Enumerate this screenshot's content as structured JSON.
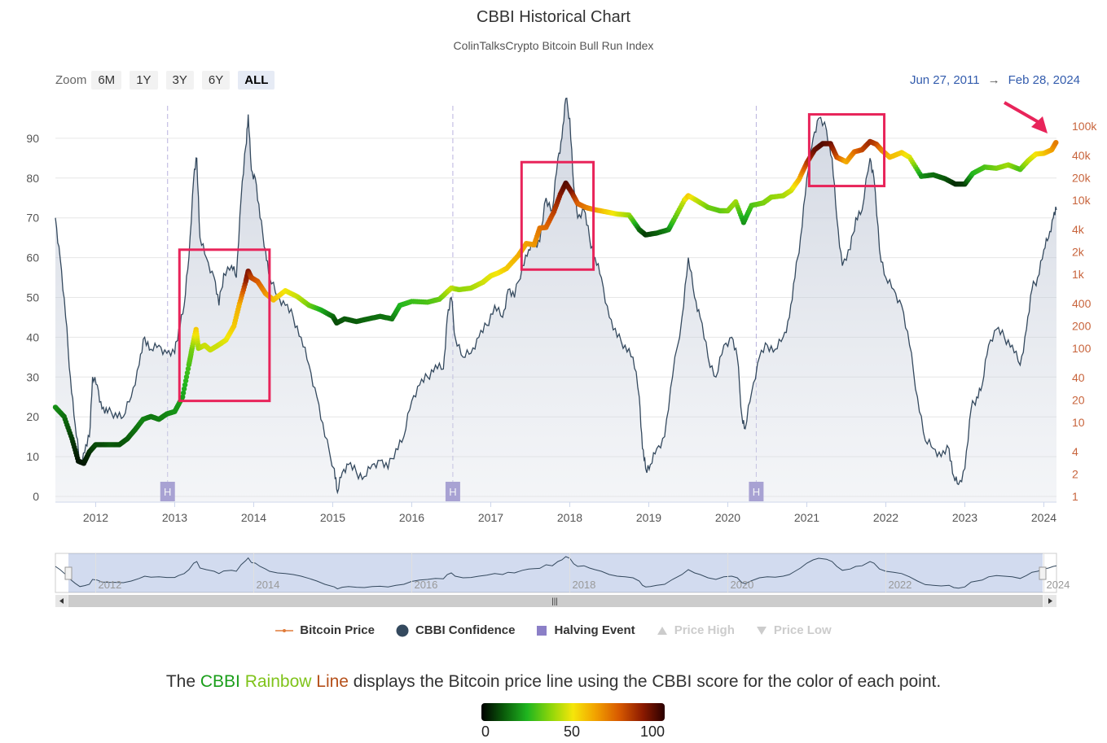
{
  "header": {
    "title": "CBBI Historical Chart",
    "subtitle": "ColinTalksCrypto Bitcoin Bull Run Index"
  },
  "zoom": {
    "label": "Zoom",
    "buttons": [
      "6M",
      "1Y",
      "3Y",
      "6Y",
      "ALL"
    ],
    "active": "ALL"
  },
  "range": {
    "from": "Jun 27, 2011",
    "arrow": "→",
    "to": "Feb 28, 2024"
  },
  "legend": [
    {
      "label": "Bitcoin Price",
      "color": "#e07b39",
      "enabled": true
    },
    {
      "label": "CBBI Confidence",
      "color": "#34495e",
      "enabled": true
    },
    {
      "label": "Halving Event",
      "color": "#8b7fc7",
      "enabled": true
    },
    {
      "label": "Price High",
      "color": "#cccccc",
      "enabled": false
    },
    {
      "label": "Price Low",
      "color": "#cccccc",
      "enabled": false
    }
  ],
  "caption": {
    "pre": "The ",
    "cbbi": "CBBI",
    "rainbow": "Rainbow",
    "line": "Line",
    "post": " displays the Bitcoin price line using the CBBI score for the color of each point."
  },
  "colorbar": {
    "min": "0",
    "mid": "50",
    "max": "100"
  },
  "chart_data": {
    "type": "line",
    "title": "CBBI Historical Chart",
    "x_range": [
      2011.49,
      2024.16
    ],
    "x_ticks": [
      "2012",
      "2013",
      "2014",
      "2015",
      "2016",
      "2017",
      "2018",
      "2019",
      "2020",
      "2021",
      "2022",
      "2023",
      "2024"
    ],
    "navigator_ticks": [
      "2012",
      "2014",
      "2016",
      "2018",
      "2020",
      "2022",
      "2024"
    ],
    "y_left": {
      "ticks": [
        "0",
        "10",
        "20",
        "30",
        "40",
        "50",
        "60",
        "70",
        "80",
        "90"
      ],
      "range": [
        0,
        100
      ]
    },
    "y_right": {
      "ticks": [
        "1",
        "2",
        "4",
        "10",
        "20",
        "40",
        "100",
        "200",
        "400",
        "1k",
        "2k",
        "4k",
        "10k",
        "20k",
        "40k",
        "100k"
      ],
      "scale": "log",
      "range": [
        0.8,
        160000
      ]
    },
    "cbbi_confidence": [
      [
        2011.49,
        70
      ],
      [
        2011.55,
        60
      ],
      [
        2011.62,
        45
      ],
      [
        2011.68,
        30
      ],
      [
        2011.74,
        18
      ],
      [
        2011.8,
        8
      ],
      [
        2011.86,
        11
      ],
      [
        2011.92,
        15
      ],
      [
        2011.96,
        30
      ],
      [
        2012.02,
        28
      ],
      [
        2012.08,
        22
      ],
      [
        2012.15,
        21
      ],
      [
        2012.25,
        21
      ],
      [
        2012.35,
        20
      ],
      [
        2012.45,
        25
      ],
      [
        2012.55,
        33
      ],
      [
        2012.62,
        40
      ],
      [
        2012.7,
        37
      ],
      [
        2012.8,
        38
      ],
      [
        2012.9,
        36
      ],
      [
        2013.0,
        36
      ],
      [
        2013.05,
        42
      ],
      [
        2013.12,
        48
      ],
      [
        2013.18,
        60
      ],
      [
        2013.24,
        80
      ],
      [
        2013.28,
        85
      ],
      [
        2013.32,
        65
      ],
      [
        2013.4,
        60
      ],
      [
        2013.5,
        55
      ],
      [
        2013.56,
        48
      ],
      [
        2013.62,
        56
      ],
      [
        2013.72,
        58
      ],
      [
        2013.78,
        55
      ],
      [
        2013.84,
        75
      ],
      [
        2013.9,
        88
      ],
      [
        2013.93,
        96
      ],
      [
        2013.97,
        82
      ],
      [
        2014.02,
        80
      ],
      [
        2014.08,
        70
      ],
      [
        2014.15,
        62
      ],
      [
        2014.2,
        55
      ],
      [
        2014.3,
        50
      ],
      [
        2014.4,
        48
      ],
      [
        2014.5,
        45
      ],
      [
        2014.6,
        40
      ],
      [
        2014.7,
        33
      ],
      [
        2014.8,
        25
      ],
      [
        2014.9,
        15
      ],
      [
        2015.02,
        7
      ],
      [
        2015.06,
        1
      ],
      [
        2015.12,
        6
      ],
      [
        2015.2,
        8
      ],
      [
        2015.3,
        6
      ],
      [
        2015.4,
        5
      ],
      [
        2015.5,
        8
      ],
      [
        2015.6,
        9
      ],
      [
        2015.7,
        7
      ],
      [
        2015.8,
        12
      ],
      [
        2015.9,
        15
      ],
      [
        2016.0,
        24
      ],
      [
        2016.1,
        28
      ],
      [
        2016.2,
        30
      ],
      [
        2016.3,
        33
      ],
      [
        2016.4,
        32
      ],
      [
        2016.45,
        45
      ],
      [
        2016.5,
        50
      ],
      [
        2016.55,
        40
      ],
      [
        2016.65,
        35
      ],
      [
        2016.75,
        36
      ],
      [
        2016.85,
        40
      ],
      [
        2016.95,
        43
      ],
      [
        2017.05,
        48
      ],
      [
        2017.15,
        45
      ],
      [
        2017.22,
        52
      ],
      [
        2017.3,
        50
      ],
      [
        2017.4,
        58
      ],
      [
        2017.48,
        62
      ],
      [
        2017.55,
        63
      ],
      [
        2017.62,
        64
      ],
      [
        2017.7,
        75
      ],
      [
        2017.78,
        72
      ],
      [
        2017.85,
        85
      ],
      [
        2017.9,
        90
      ],
      [
        2017.95,
        100
      ],
      [
        2018.0,
        95
      ],
      [
        2018.05,
        78
      ],
      [
        2018.1,
        70
      ],
      [
        2018.18,
        72
      ],
      [
        2018.25,
        65
      ],
      [
        2018.32,
        60
      ],
      [
        2018.4,
        55
      ],
      [
        2018.5,
        45
      ],
      [
        2018.6,
        40
      ],
      [
        2018.7,
        38
      ],
      [
        2018.8,
        35
      ],
      [
        2018.88,
        25
      ],
      [
        2018.92,
        12
      ],
      [
        2018.96,
        7
      ],
      [
        2019.02,
        8
      ],
      [
        2019.1,
        12
      ],
      [
        2019.2,
        15
      ],
      [
        2019.3,
        30
      ],
      [
        2019.42,
        45
      ],
      [
        2019.5,
        60
      ],
      [
        2019.58,
        50
      ],
      [
        2019.65,
        45
      ],
      [
        2019.75,
        35
      ],
      [
        2019.85,
        30
      ],
      [
        2019.95,
        38
      ],
      [
        2020.05,
        40
      ],
      [
        2020.12,
        35
      ],
      [
        2020.18,
        20
      ],
      [
        2020.22,
        17
      ],
      [
        2020.3,
        26
      ],
      [
        2020.4,
        35
      ],
      [
        2020.5,
        38
      ],
      [
        2020.6,
        37
      ],
      [
        2020.7,
        40
      ],
      [
        2020.78,
        45
      ],
      [
        2020.85,
        55
      ],
      [
        2020.92,
        65
      ],
      [
        2021.0,
        80
      ],
      [
        2021.08,
        90
      ],
      [
        2021.15,
        95
      ],
      [
        2021.25,
        92
      ],
      [
        2021.32,
        85
      ],
      [
        2021.38,
        70
      ],
      [
        2021.45,
        58
      ],
      [
        2021.55,
        62
      ],
      [
        2021.62,
        70
      ],
      [
        2021.7,
        72
      ],
      [
        2021.8,
        85
      ],
      [
        2021.85,
        80
      ],
      [
        2021.92,
        62
      ],
      [
        2022.0,
        55
      ],
      [
        2022.1,
        52
      ],
      [
        2022.2,
        48
      ],
      [
        2022.3,
        38
      ],
      [
        2022.4,
        25
      ],
      [
        2022.5,
        14
      ],
      [
        2022.6,
        12
      ],
      [
        2022.7,
        10
      ],
      [
        2022.8,
        12
      ],
      [
        2022.86,
        5
      ],
      [
        2022.92,
        3
      ],
      [
        2023.0,
        7
      ],
      [
        2023.08,
        22
      ],
      [
        2023.15,
        25
      ],
      [
        2023.22,
        28
      ],
      [
        2023.3,
        38
      ],
      [
        2023.4,
        42
      ],
      [
        2023.5,
        40
      ],
      [
        2023.6,
        38
      ],
      [
        2023.7,
        33
      ],
      [
        2023.78,
        42
      ],
      [
        2023.85,
        52
      ],
      [
        2023.92,
        55
      ],
      [
        2024.0,
        62
      ],
      [
        2024.06,
        65
      ],
      [
        2024.12,
        70
      ],
      [
        2024.16,
        72
      ]
    ],
    "bitcoin_price": [
      [
        2011.49,
        16,
        20
      ],
      [
        2011.6,
        12,
        15
      ],
      [
        2011.7,
        6,
        8
      ],
      [
        2011.78,
        3,
        3
      ],
      [
        2011.85,
        2.8,
        3
      ],
      [
        2011.92,
        4,
        6
      ],
      [
        2012.0,
        5,
        10
      ],
      [
        2012.1,
        5,
        10
      ],
      [
        2012.2,
        5,
        12
      ],
      [
        2012.3,
        5,
        11
      ],
      [
        2012.4,
        6,
        12
      ],
      [
        2012.5,
        8,
        15
      ],
      [
        2012.6,
        11,
        18
      ],
      [
        2012.7,
        12,
        16
      ],
      [
        2012.8,
        11,
        17
      ],
      [
        2012.9,
        13,
        18
      ],
      [
        2013.0,
        14,
        20
      ],
      [
        2013.1,
        22,
        22
      ],
      [
        2013.18,
        60,
        30
      ],
      [
        2013.22,
        100,
        35
      ],
      [
        2013.27,
        180,
        55
      ],
      [
        2013.3,
        100,
        40
      ],
      [
        2013.38,
        110,
        45
      ],
      [
        2013.45,
        95,
        45
      ],
      [
        2013.55,
        110,
        45
      ],
      [
        2013.65,
        130,
        48
      ],
      [
        2013.75,
        200,
        55
      ],
      [
        2013.82,
        400,
        60
      ],
      [
        2013.9,
        800,
        85
      ],
      [
        2013.93,
        1100,
        90
      ],
      [
        2013.97,
        900,
        80
      ],
      [
        2014.05,
        800,
        75
      ],
      [
        2014.15,
        550,
        65
      ],
      [
        2014.25,
        450,
        58
      ],
      [
        2014.4,
        600,
        50
      ],
      [
        2014.55,
        500,
        45
      ],
      [
        2014.7,
        380,
        35
      ],
      [
        2014.85,
        330,
        25
      ],
      [
        2015.0,
        270,
        15
      ],
      [
        2015.05,
        220,
        10
      ],
      [
        2015.15,
        250,
        12
      ],
      [
        2015.3,
        230,
        12
      ],
      [
        2015.45,
        250,
        14
      ],
      [
        2015.6,
        270,
        15
      ],
      [
        2015.75,
        250,
        16
      ],
      [
        2015.85,
        380,
        25
      ],
      [
        2016.0,
        430,
        28
      ],
      [
        2016.2,
        420,
        30
      ],
      [
        2016.35,
        460,
        33
      ],
      [
        2016.5,
        650,
        45
      ],
      [
        2016.6,
        620,
        38
      ],
      [
        2016.75,
        650,
        40
      ],
      [
        2016.9,
        780,
        45
      ],
      [
        2017.0,
        950,
        48
      ],
      [
        2017.1,
        1050,
        50
      ],
      [
        2017.2,
        1200,
        55
      ],
      [
        2017.35,
        1800,
        60
      ],
      [
        2017.45,
        2600,
        62
      ],
      [
        2017.55,
        2500,
        64
      ],
      [
        2017.62,
        4200,
        70
      ],
      [
        2017.7,
        4300,
        72
      ],
      [
        2017.8,
        7000,
        80
      ],
      [
        2017.88,
        12000,
        88
      ],
      [
        2017.95,
        17000,
        95
      ],
      [
        2018.02,
        13000,
        90
      ],
      [
        2018.1,
        9000,
        75
      ],
      [
        2018.2,
        8000,
        70
      ],
      [
        2018.3,
        7500,
        65
      ],
      [
        2018.45,
        7000,
        55
      ],
      [
        2018.6,
        6500,
        48
      ],
      [
        2018.75,
        6300,
        40
      ],
      [
        2018.88,
        4000,
        15
      ],
      [
        2018.96,
        3400,
        8
      ],
      [
        2019.1,
        3600,
        12
      ],
      [
        2019.25,
        4000,
        18
      ],
      [
        2019.32,
        5500,
        30
      ],
      [
        2019.45,
        10000,
        45
      ],
      [
        2019.5,
        11500,
        55
      ],
      [
        2019.6,
        10000,
        45
      ],
      [
        2019.75,
        8000,
        35
      ],
      [
        2019.9,
        7200,
        32
      ],
      [
        2020.0,
        7200,
        35
      ],
      [
        2020.1,
        9500,
        40
      ],
      [
        2020.2,
        5000,
        20
      ],
      [
        2020.3,
        8500,
        30
      ],
      [
        2020.45,
        9200,
        35
      ],
      [
        2020.55,
        11000,
        38
      ],
      [
        2020.7,
        11500,
        40
      ],
      [
        2020.8,
        13500,
        45
      ],
      [
        2020.9,
        19000,
        58
      ],
      [
        2021.0,
        32000,
        80
      ],
      [
        2021.1,
        48000,
        92
      ],
      [
        2021.2,
        58000,
        95
      ],
      [
        2021.3,
        58000,
        92
      ],
      [
        2021.38,
        38000,
        78
      ],
      [
        2021.5,
        33000,
        60
      ],
      [
        2021.6,
        45000,
        70
      ],
      [
        2021.7,
        48000,
        78
      ],
      [
        2021.8,
        62000,
        85
      ],
      [
        2021.88,
        57000,
        80
      ],
      [
        2021.95,
        47000,
        68
      ],
      [
        2022.05,
        38000,
        58
      ],
      [
        2022.2,
        44000,
        55
      ],
      [
        2022.3,
        38000,
        48
      ],
      [
        2022.45,
        21000,
        20
      ],
      [
        2022.6,
        22000,
        15
      ],
      [
        2022.75,
        19500,
        12
      ],
      [
        2022.88,
        16500,
        6
      ],
      [
        2023.0,
        16500,
        8
      ],
      [
        2023.1,
        23000,
        25
      ],
      [
        2023.25,
        28000,
        30
      ],
      [
        2023.4,
        27000,
        35
      ],
      [
        2023.55,
        30000,
        40
      ],
      [
        2023.7,
        26000,
        30
      ],
      [
        2023.8,
        34000,
        42
      ],
      [
        2023.9,
        42000,
        50
      ],
      [
        2024.0,
        43000,
        55
      ],
      [
        2024.1,
        48000,
        62
      ],
      [
        2024.16,
        62000,
        70
      ]
    ],
    "halvings": [
      2012.91,
      2016.52,
      2020.36
    ],
    "halving_marker": "H",
    "highlight_boxes": [
      {
        "x": [
          2013.06,
          2014.2
        ],
        "y_left": [
          24,
          62
        ]
      },
      {
        "x": [
          2017.39,
          2018.3
        ],
        "y_left": [
          57,
          84
        ]
      },
      {
        "x": [
          2021.03,
          2021.98
        ],
        "y_left": [
          78,
          96
        ]
      }
    ]
  }
}
